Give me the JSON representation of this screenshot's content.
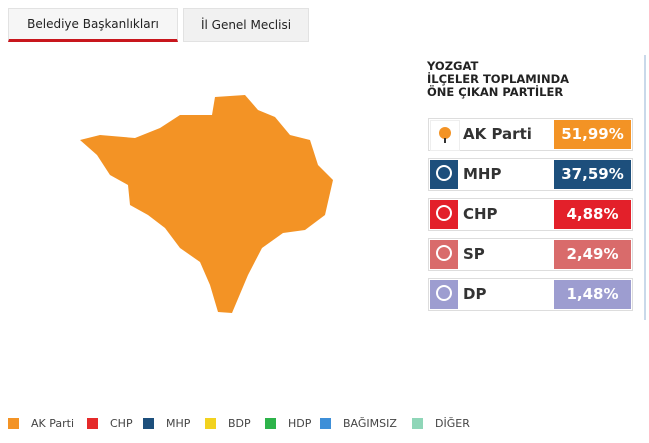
{
  "tabs": [
    "Belediye Başkanlıkları",
    "İl Genel Meclisi"
  ],
  "heading": [
    "YOZGAT",
    "İLÇELER TOPLAMINDA",
    "ÖNE ÇIKAN PARTİLER"
  ],
  "parties": [
    {
      "name": "AK Parti",
      "value": "51,99%",
      "color": "#f39325"
    },
    {
      "name": "MHP",
      "value": "37,59%",
      "color": "#1d4f7c"
    },
    {
      "name": "CHP",
      "value": "4,88%",
      "color": "#e3202a"
    },
    {
      "name": "SP",
      "value": "2,49%",
      "color": "#d96b6b"
    },
    {
      "name": "DP",
      "value": "1,48%",
      "color": "#9d9dd0"
    }
  ],
  "map_color": "#f39325",
  "legend": [
    {
      "name": "AK Parti",
      "color": "#f39325"
    },
    {
      "name": "CHP",
      "color": "#e52a2a"
    },
    {
      "name": "MHP",
      "color": "#1d4f7c"
    },
    {
      "name": "BDP",
      "color": "#f2d21f"
    },
    {
      "name": "HDP",
      "color": "#2db34a"
    },
    {
      "name": "BAĞIMSIZ",
      "color": "#3e8fd8"
    },
    {
      "name": "DİĞER",
      "color": "#8fd6b8"
    }
  ]
}
